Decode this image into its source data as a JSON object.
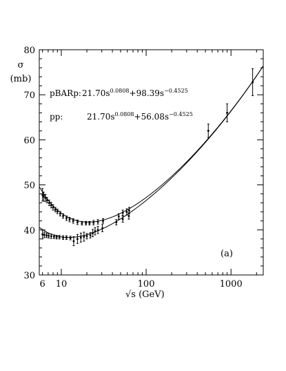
{
  "chart_data": {
    "type": "scatter",
    "xscale": "log",
    "xlim": [
      5.5,
      2400
    ],
    "ylim": [
      30,
      80
    ],
    "xlabel": "√s   (GeV)",
    "ylabel_symbol": "σ",
    "ylabel_unit": "(mb)",
    "panel_label": "(a)",
    "x_ticks": [
      6,
      10,
      100,
      1000
    ],
    "x_tick_labels": [
      "6",
      "10",
      "100",
      "1000"
    ],
    "y_ticks": [
      30,
      40,
      50,
      60,
      70,
      80
    ],
    "y_tick_labels": [
      "30",
      "40",
      "50",
      "60",
      "70",
      "80"
    ],
    "annotations": [
      {
        "label": "pBARp:",
        "formula": [
          {
            "t": " 21.70s"
          },
          {
            "sup": "0.0808"
          },
          {
            "t": "+98.39s"
          },
          {
            "sup": "−0.4525"
          }
        ]
      },
      {
        "label": "pp:",
        "formula": [
          {
            "t": "21.70s"
          },
          {
            "sup": "0.0808"
          },
          {
            "t": "+56.08s"
          },
          {
            "sup": "−0.4525"
          }
        ]
      }
    ],
    "fits": [
      {
        "name": "pBARp",
        "A": 21.7,
        "a": 0.0808,
        "B": 98.39,
        "b": 0.4525
      },
      {
        "name": "pp",
        "A": 21.7,
        "a": 0.0808,
        "B": 56.08,
        "b": 0.4525
      }
    ],
    "series": [
      {
        "name": "pBARp",
        "points": [
          [
            6.0,
            47.8,
            1.4
          ],
          [
            6.2,
            47.4,
            1.0
          ],
          [
            6.5,
            47.1,
            0.8
          ],
          [
            6.8,
            46.6,
            0.6
          ],
          [
            7.2,
            46.0,
            0.6
          ],
          [
            7.6,
            45.5,
            0.6
          ],
          [
            8.0,
            45.0,
            0.6
          ],
          [
            8.5,
            44.5,
            0.5
          ],
          [
            9.0,
            44.1,
            0.5
          ],
          [
            9.7,
            43.6,
            0.5
          ],
          [
            10.5,
            43.1,
            0.5
          ],
          [
            11.5,
            42.6,
            0.5
          ],
          [
            12.5,
            42.3,
            0.5
          ],
          [
            13.8,
            42.0,
            0.5
          ],
          [
            15.5,
            41.7,
            0.5
          ],
          [
            17.5,
            41.5,
            0.4
          ],
          [
            19.5,
            41.5,
            0.4
          ],
          [
            21.5,
            41.5,
            0.4
          ],
          [
            24.0,
            41.6,
            0.5
          ],
          [
            27.0,
            41.8,
            0.5
          ],
          [
            31.0,
            42.0,
            0.5
          ],
          [
            47.5,
            43.0,
            0.6
          ],
          [
            53.0,
            43.8,
            0.6
          ],
          [
            59.0,
            44.0,
            0.7
          ],
          [
            63.0,
            44.3,
            0.7
          ],
          [
            540.0,
            62.0,
            1.5
          ],
          [
            900.0,
            66.0,
            2.0
          ],
          [
            1800.0,
            72.8,
            3.0
          ]
        ]
      },
      {
        "name": "pp",
        "points": [
          [
            6.0,
            39.0,
            1.0
          ],
          [
            6.3,
            38.9,
            0.6
          ],
          [
            6.7,
            38.8,
            0.5
          ],
          [
            7.1,
            38.7,
            0.5
          ],
          [
            7.6,
            38.6,
            0.5
          ],
          [
            8.2,
            38.5,
            0.4
          ],
          [
            8.8,
            38.4,
            0.4
          ],
          [
            9.5,
            38.4,
            0.4
          ],
          [
            10.5,
            38.3,
            0.4
          ],
          [
            11.5,
            38.3,
            0.4
          ],
          [
            12.8,
            38.2,
            0.4
          ],
          [
            14.0,
            37.5,
            1.0
          ],
          [
            15.5,
            38.0,
            1.0
          ],
          [
            17.0,
            38.3,
            1.0
          ],
          [
            18.5,
            38.5,
            1.0
          ],
          [
            20.0,
            38.6,
            0.6
          ],
          [
            22.0,
            38.8,
            0.6
          ],
          [
            23.5,
            39.3,
            0.8
          ],
          [
            25.0,
            39.7,
            0.8
          ],
          [
            27.0,
            40.0,
            0.8
          ],
          [
            30.5,
            40.4,
            0.8
          ],
          [
            44.5,
            41.7,
            0.6
          ],
          [
            53.0,
            42.4,
            0.7
          ],
          [
            62.5,
            43.1,
            0.7
          ]
        ]
      }
    ]
  }
}
